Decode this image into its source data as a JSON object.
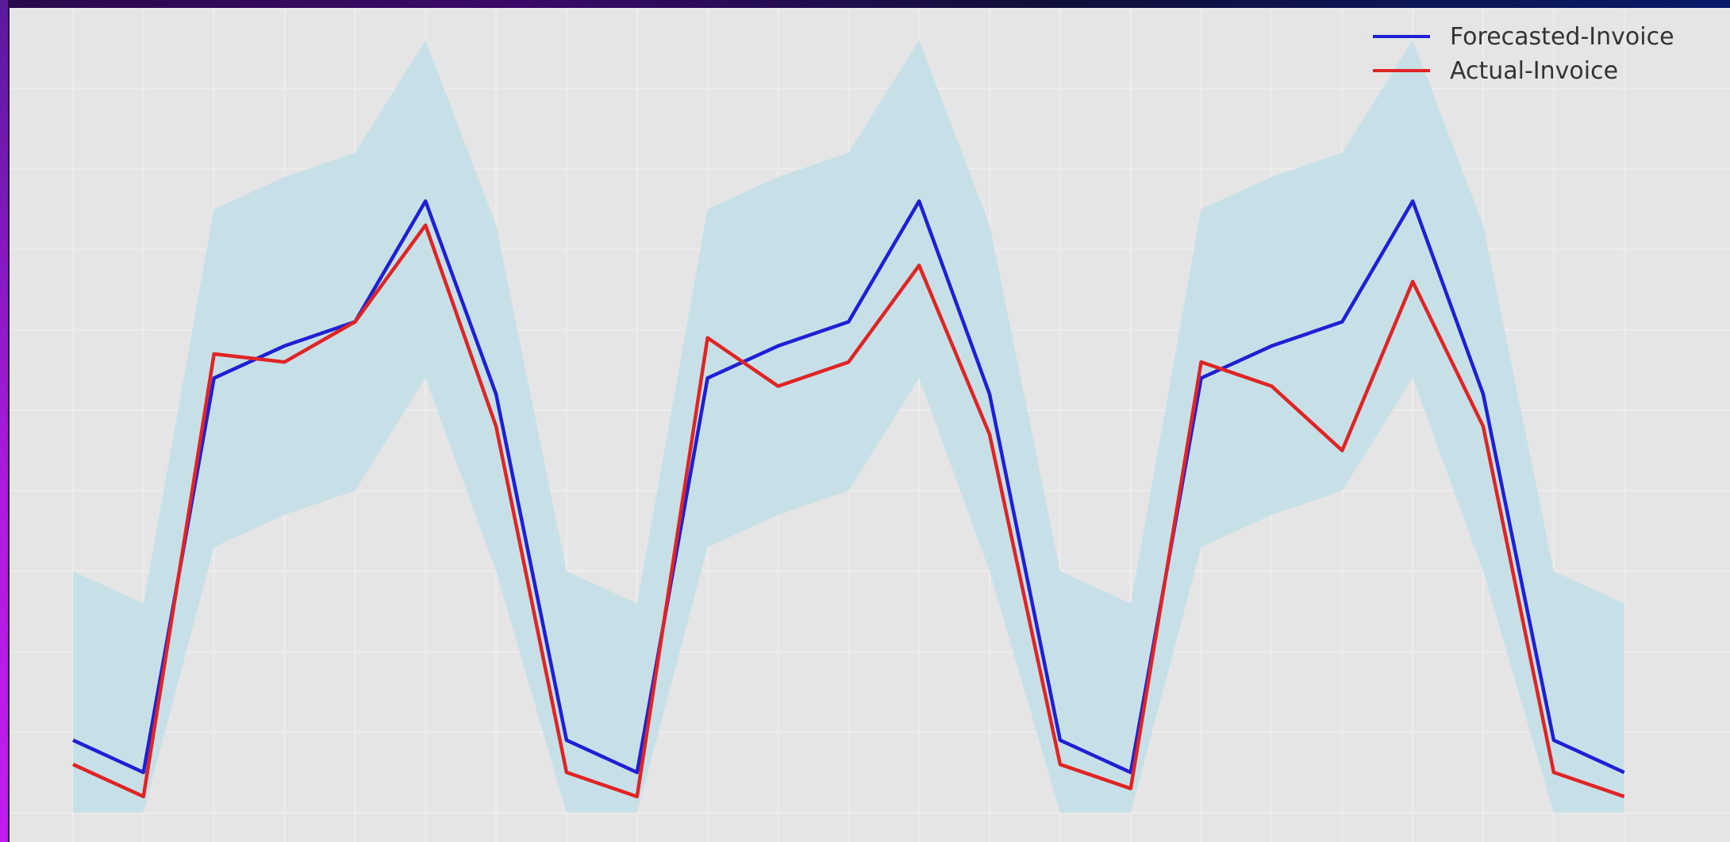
{
  "chart_data": {
    "type": "line",
    "title": "",
    "xlabel": "",
    "ylabel": "",
    "grid": true,
    "legend_position": "top-right",
    "x": [
      1,
      2,
      3,
      4,
      5,
      6,
      7,
      8,
      9,
      10,
      11,
      12,
      13,
      14,
      15,
      16,
      17,
      18,
      19,
      20,
      21,
      22,
      23
    ],
    "xlim": [
      0.1,
      24.5
    ],
    "ylim": [
      0.0,
      1.0
    ],
    "series": [
      {
        "name": "Forecasted-Invoice",
        "color": "#1f1fd6",
        "values": [
          0.09,
          0.05,
          0.54,
          0.58,
          0.61,
          0.76,
          0.52,
          0.09,
          0.05,
          0.54,
          0.58,
          0.61,
          0.76,
          0.52,
          0.09,
          0.05,
          0.54,
          0.58,
          0.61,
          0.76,
          0.52,
          0.09,
          0.05
        ]
      },
      {
        "name": "Actual-Invoice",
        "color": "#e02424",
        "values": [
          0.06,
          0.02,
          0.57,
          0.56,
          0.61,
          0.73,
          0.48,
          0.05,
          0.02,
          0.59,
          0.53,
          0.56,
          0.68,
          0.47,
          0.06,
          0.03,
          0.56,
          0.53,
          0.45,
          0.66,
          0.48,
          0.05,
          0.02
        ]
      }
    ],
    "confidence_band": {
      "color": "#c7e0e8",
      "lower": [
        0.0,
        0.0,
        0.33,
        0.37,
        0.4,
        0.54,
        0.3,
        0.0,
        0.0,
        0.33,
        0.37,
        0.4,
        0.54,
        0.3,
        0.0,
        0.0,
        0.33,
        0.37,
        0.4,
        0.54,
        0.3,
        0.0,
        0.0
      ],
      "upper": [
        0.3,
        0.26,
        0.75,
        0.79,
        0.82,
        0.96,
        0.73,
        0.3,
        0.26,
        0.75,
        0.79,
        0.82,
        0.96,
        0.73,
        0.3,
        0.26,
        0.75,
        0.79,
        0.82,
        0.96,
        0.73,
        0.3,
        0.26
      ]
    }
  }
}
